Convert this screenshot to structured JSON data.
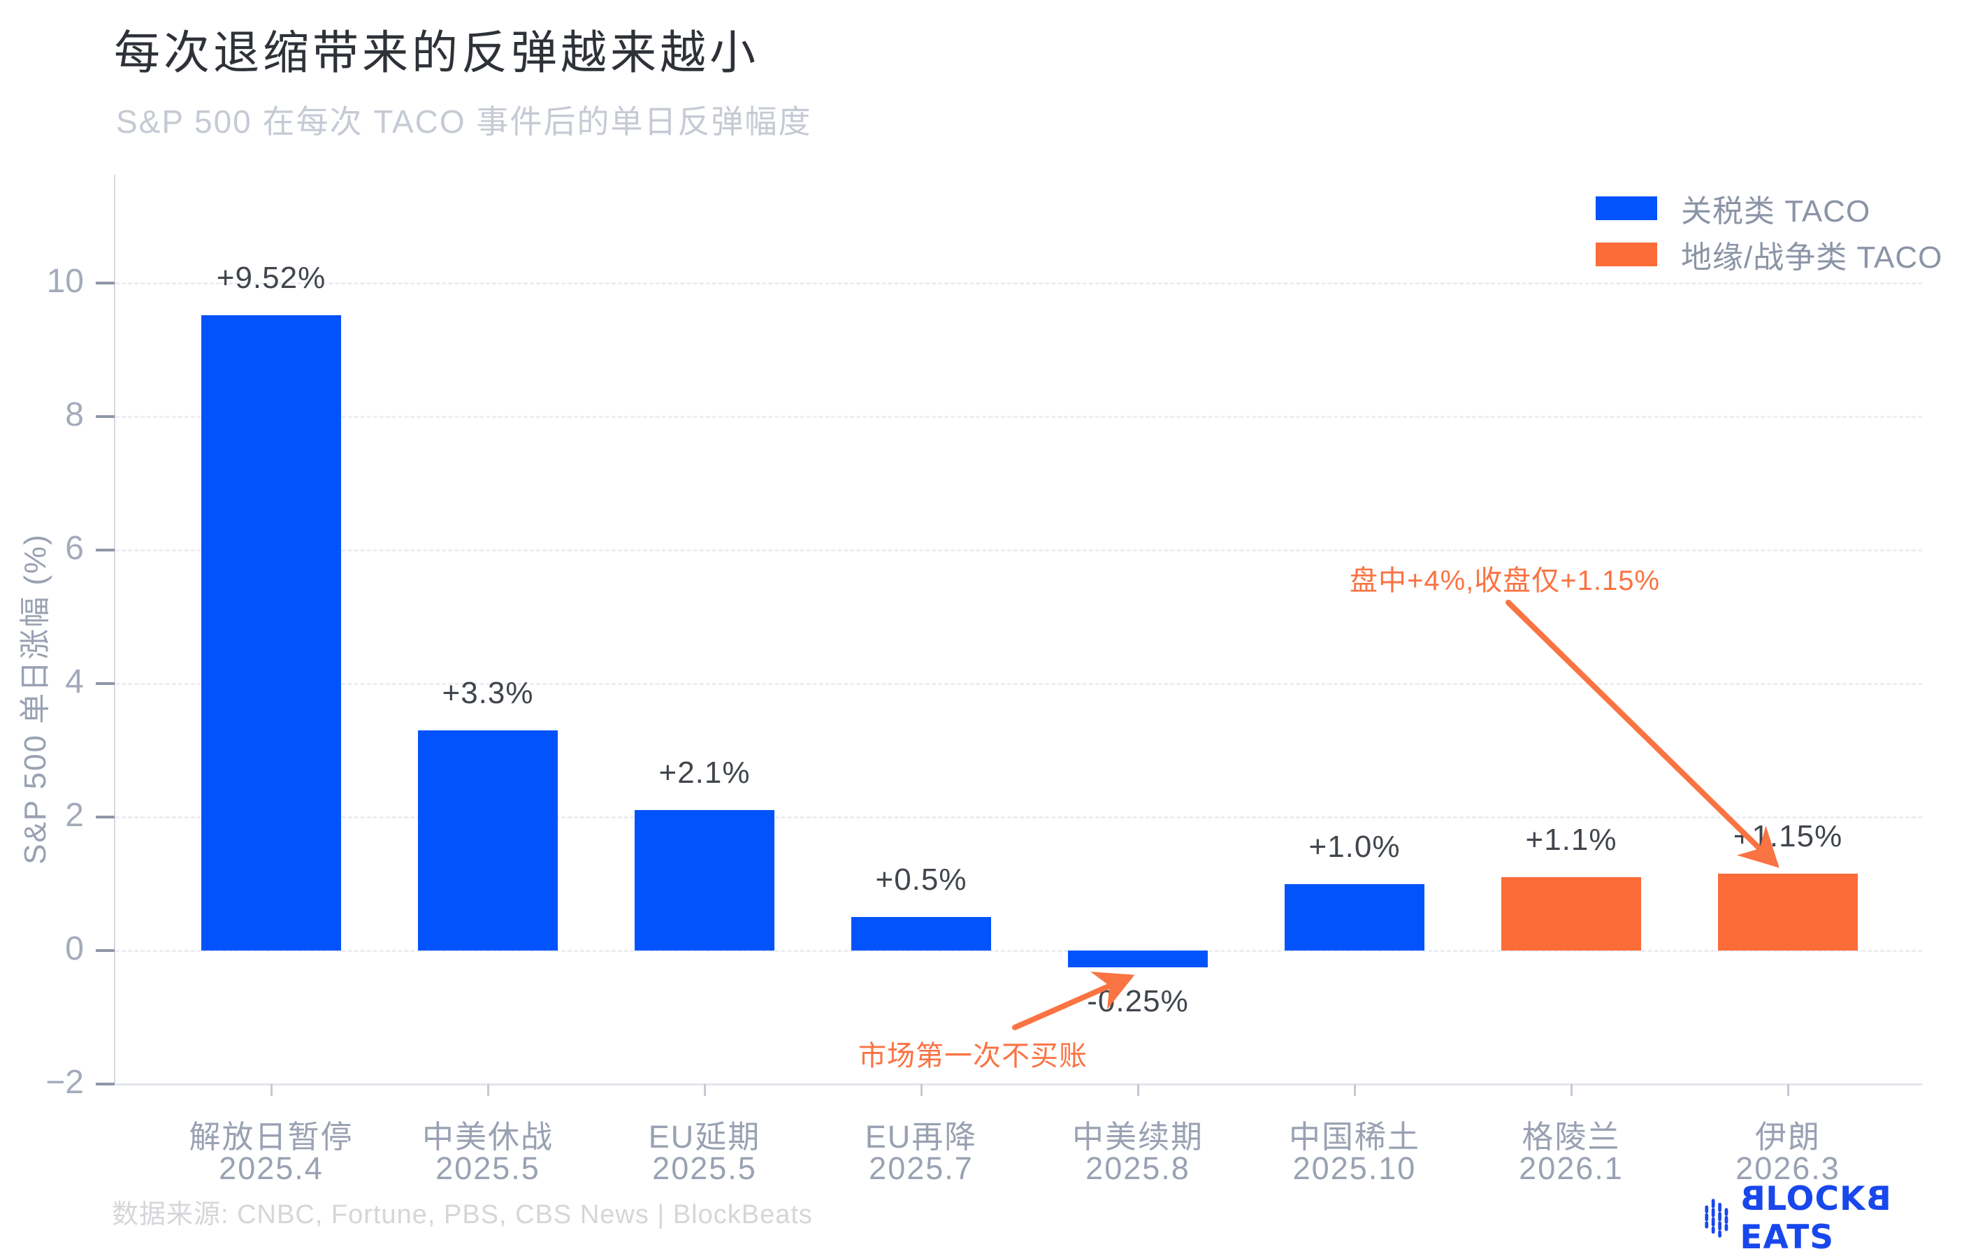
{
  "header": {
    "title": "每次退缩带来的反弹越来越小",
    "subtitle": "S&P 500 在每次 TACO 事件后的单日反弹幅度"
  },
  "colors": {
    "tariff_blue": "#0253fb",
    "geo_orange": "#fb6c38",
    "annotation_orange": "#fa7342",
    "brand_blue": "#1847ec"
  },
  "legend": {
    "items": [
      {
        "label": "关税类 TACO",
        "series": "tariff"
      },
      {
        "label": "地缘/战争类 TACO",
        "series": "geo"
      }
    ]
  },
  "chart_data": {
    "type": "bar",
    "title": "每次退缩带来的反弹越来越小",
    "subtitle": "S&P 500 在每次 TACO 事件后的单日反弹幅度",
    "ylabel": "S&P 500 单日涨幅 (%)",
    "xlabel": "",
    "ylim": [
      -2,
      11.6
    ],
    "grid": "dashed-horizontal",
    "legend_position": "top-right",
    "categories": [
      "解放日暂停",
      "中美休战",
      "EU延期",
      "EU再降",
      "中美续期",
      "中国稀土",
      "格陵兰",
      "伊朗"
    ],
    "category_dates": [
      "2025.4",
      "2025.5",
      "2025.5",
      "2025.7",
      "2025.8",
      "2025.10",
      "2026.1",
      "2026.3"
    ],
    "values": [
      9.52,
      3.3,
      2.1,
      0.5,
      -0.25,
      1.0,
      1.1,
      1.15
    ],
    "value_labels": [
      "+9.52%",
      "+3.3%",
      "+2.1%",
      "+0.5%",
      "-0.25%",
      "+1.0%",
      "+1.1%",
      "+1.15%"
    ],
    "bar_series": [
      "tariff",
      "tariff",
      "tariff",
      "tariff",
      "tariff",
      "tariff",
      "geo",
      "geo"
    ],
    "y_ticks": [
      {
        "v": 10,
        "label": "10"
      },
      {
        "v": 8,
        "label": "8"
      },
      {
        "v": 6,
        "label": "6"
      },
      {
        "v": 4,
        "label": "4"
      },
      {
        "v": 2,
        "label": "2"
      },
      {
        "v": 0,
        "label": "0"
      },
      {
        "v": -2,
        "label": "−2"
      }
    ]
  },
  "annotations": [
    {
      "text": "盘中+4%,收盘仅+1.15%",
      "arrow_from": [
        2158,
        862
      ],
      "arrow_to": [
        2540,
        1236
      ]
    },
    {
      "text": "市场第一次不买账",
      "arrow_from": [
        1452,
        1470
      ],
      "arrow_to": [
        1616,
        1398
      ]
    }
  ],
  "footer": {
    "source": "数据来源: CNBC, Fortune, PBS, CBS News | BlockBeats",
    "brand": "BLOCKBEATS"
  }
}
